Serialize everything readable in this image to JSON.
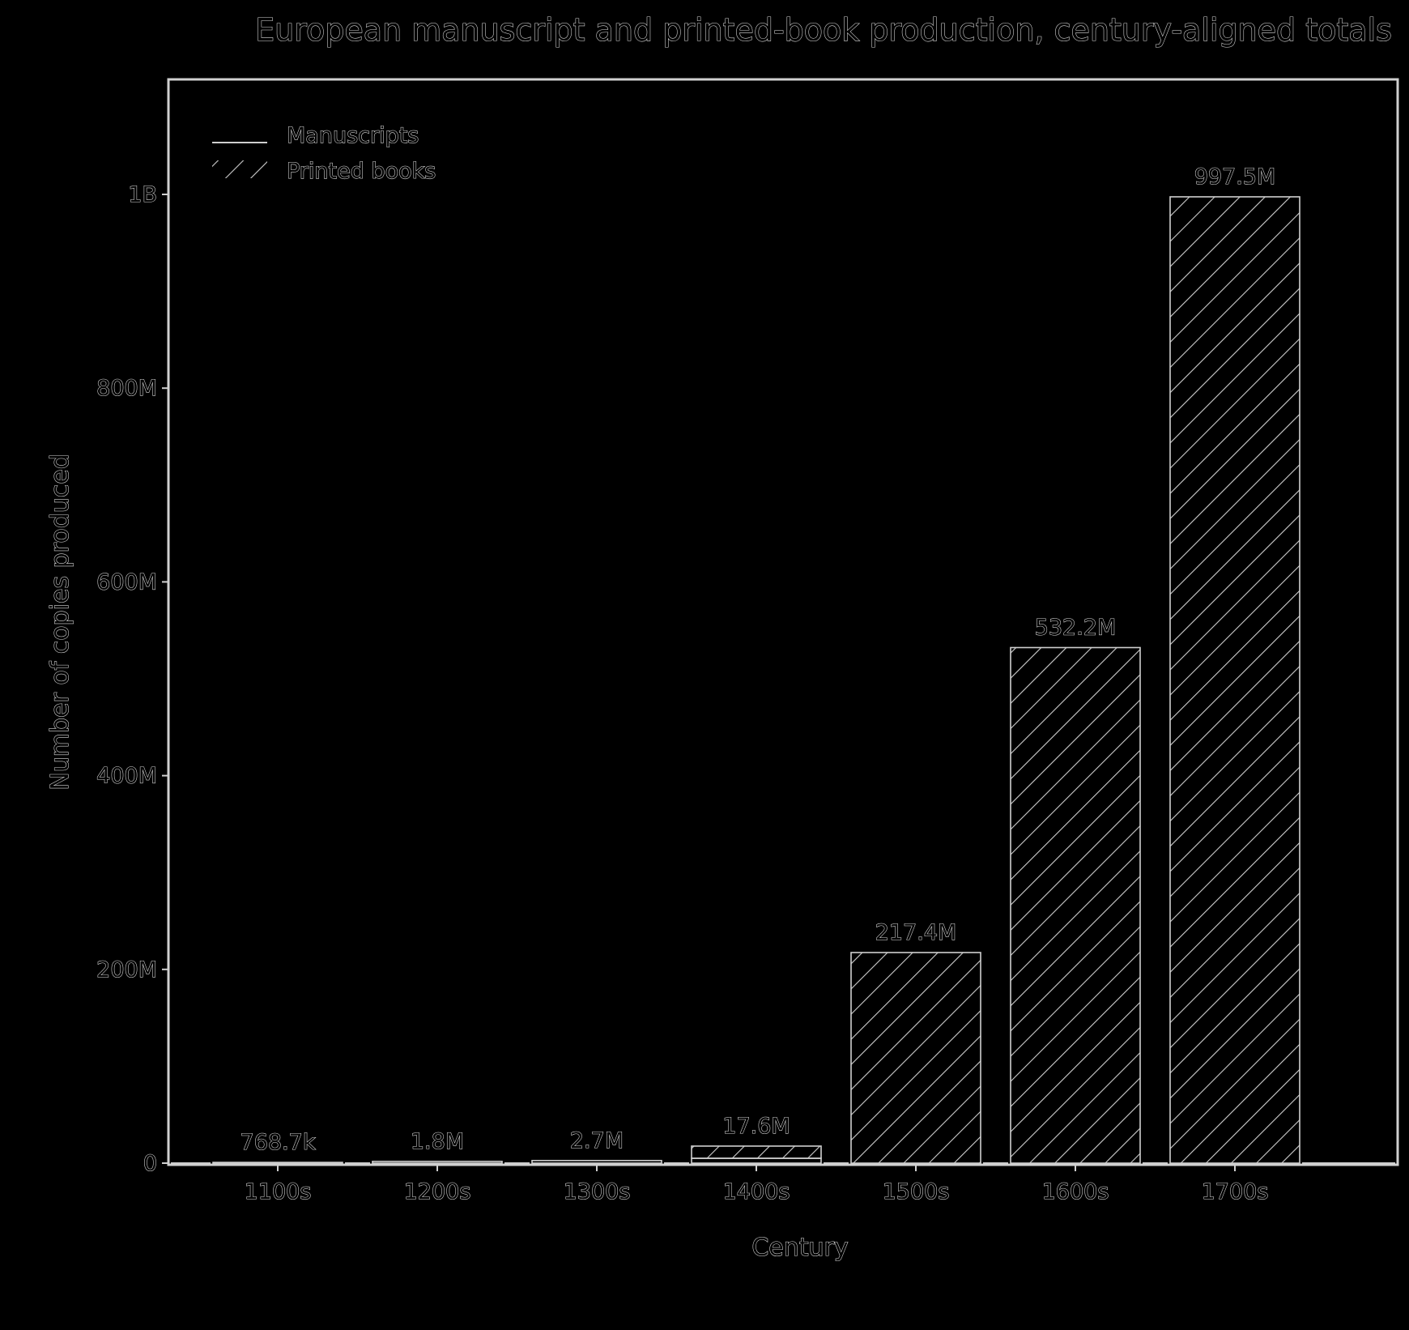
{
  "chart_data": {
    "type": "bar",
    "title": "European manuscript and printed-book production, century-aligned totals",
    "xlabel": "Century",
    "ylabel": "Number of copies produced",
    "categories": [
      "1100s",
      "1200s",
      "1300s",
      "1400s",
      "1500s",
      "1600s",
      "1700s"
    ],
    "series": [
      {
        "name": "Manuscripts",
        "values": [
          768700,
          1800000,
          2700000,
          5000000,
          0,
          0,
          0
        ],
        "hatch": "none"
      },
      {
        "name": "Printed books",
        "values": [
          0,
          0,
          0,
          12600000,
          217400000,
          532200000,
          997500000
        ],
        "hatch": "diagonal"
      }
    ],
    "totals_labels": [
      "768.7k",
      "1.8M",
      "2.7M",
      "17.6M",
      "217.4M",
      "532.2M",
      "997.5M"
    ],
    "y_ticks": [
      {
        "value": 0,
        "label": "0"
      },
      {
        "value": 200000000,
        "label": "200M"
      },
      {
        "value": 400000000,
        "label": "400M"
      },
      {
        "value": 600000000,
        "label": "600M"
      },
      {
        "value": 800000000,
        "label": "800M"
      },
      {
        "value": 1000000000,
        "label": "1B"
      }
    ],
    "ylim": [
      0,
      1120000000
    ],
    "legend": "top-left",
    "grid": false,
    "colors": {
      "background": "#000000",
      "ink": "#d9d9d9"
    }
  }
}
